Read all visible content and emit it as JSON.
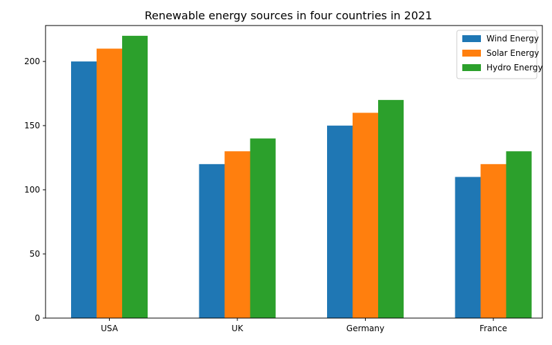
{
  "chart_data": {
    "type": "bar",
    "title": "Renewable energy sources in four countries in 2021",
    "xlabel": "",
    "ylabel": "",
    "categories": [
      "USA",
      "UK",
      "Germany",
      "France"
    ],
    "series": [
      {
        "name": "Wind Energy",
        "color": "#1f77b4",
        "values": [
          200,
          120,
          150,
          110
        ]
      },
      {
        "name": "Solar Energy",
        "color": "#ff7f0e",
        "values": [
          210,
          130,
          160,
          120
        ]
      },
      {
        "name": "Hydro Energy",
        "color": "#2ca02c",
        "values": [
          220,
          140,
          170,
          130
        ]
      }
    ],
    "ylim": [
      0,
      228
    ],
    "yticks": [
      0,
      50,
      100,
      150,
      200
    ],
    "grid": false,
    "legend_position": "top-right"
  }
}
